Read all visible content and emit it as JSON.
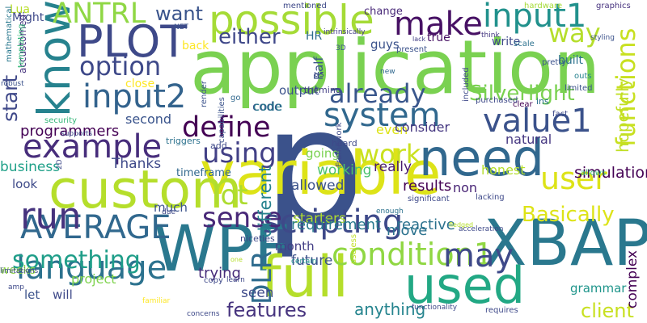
{
  "words": [
    {
      "text": "p",
      "color": "#3b528b",
      "rot": 0
    },
    {
      "text": "application",
      "color": "#7ad151",
      "rot": 0
    },
    {
      "text": "variable",
      "color": "#dde318",
      "rot": 0
    },
    {
      "text": "XBAP",
      "color": "#2a788e",
      "rot": 0
    },
    {
      "text": "need",
      "color": "#31688e",
      "rot": 0
    },
    {
      "text": "WPF",
      "color": "#2a788e",
      "rot": 0
    },
    {
      "text": "full",
      "color": "#b5de2b",
      "rot": 0
    },
    {
      "text": "custom",
      "color": "#b5de2b",
      "rot": 0
    },
    {
      "text": "used",
      "color": "#22a884",
      "rot": 0
    },
    {
      "text": "possible",
      "color": "#a5db36",
      "rot": 0
    },
    {
      "text": "PLOT",
      "color": "#3e4989",
      "rot": 0
    },
    {
      "text": "input1",
      "color": "#21918c",
      "rot": 0
    },
    {
      "text": "know",
      "color": "#26828e",
      "rot": -90
    },
    {
      "text": "system",
      "color": "#31688e",
      "rot": 0
    },
    {
      "text": "language",
      "color": "#2c728e",
      "rot": 0
    },
    {
      "text": "scripting",
      "color": "#3e4989",
      "rot": 0
    },
    {
      "text": "AVERAGE",
      "color": "#31688e",
      "rot": 0
    },
    {
      "text": "example",
      "color": "#472d7b",
      "rot": 0
    },
    {
      "text": "input2",
      "color": "#33638d",
      "rot": 0
    },
    {
      "text": "value1",
      "color": "#3b528b",
      "rot": 0
    },
    {
      "text": "condition1",
      "color": "#90d743",
      "rot": 0
    },
    {
      "text": "something",
      "color": "#1f9e89",
      "rot": 0
    },
    {
      "text": "may",
      "color": "#3e4989",
      "rot": 0
    },
    {
      "text": "functions",
      "color": "#c8e020",
      "rot": -90
    },
    {
      "text": "using",
      "color": "#424086",
      "rot": 0
    },
    {
      "text": "make",
      "color": "#471164",
      "rot": 0
    },
    {
      "text": "run",
      "color": "#46337e",
      "rot": 0
    },
    {
      "text": "sense",
      "color": "#482878",
      "rot": 0
    },
    {
      "text": "user",
      "color": "#dde318",
      "rot": 0
    },
    {
      "text": "define",
      "color": "#440154",
      "rot": 0
    },
    {
      "text": "work",
      "color": "#cae11f",
      "rot": 0
    },
    {
      "text": "ANTRL",
      "color": "#8fd744",
      "rot": 0
    },
    {
      "text": "option",
      "color": "#3e4989",
      "rot": 0
    },
    {
      "text": "already",
      "color": "#39568c",
      "rot": 0
    },
    {
      "text": "DLR",
      "color": "#2f6c8e",
      "rot": -90
    },
    {
      "text": "lot",
      "color": "#addc30",
      "rot": 0
    },
    {
      "text": "start",
      "color": "#3f4889",
      "rot": -90
    },
    {
      "text": "features",
      "color": "#46337e",
      "rot": 0
    },
    {
      "text": "Basically",
      "color": "#dde318",
      "rot": 0
    },
    {
      "text": "Silverlight",
      "color": "#7ad151",
      "rot": 0
    },
    {
      "text": "either",
      "color": "#3f4889",
      "rot": 0
    },
    {
      "text": "way",
      "color": "#b5de2b",
      "rot": 0
    },
    {
      "text": "client",
      "color": "#c8e020",
      "rot": 0
    },
    {
      "text": "want",
      "color": "#3a548c",
      "rot": 0
    },
    {
      "text": "Lua",
      "color": "#b8de29",
      "rot": 0
    },
    {
      "text": "starters",
      "color": "#addc30",
      "rot": 0
    },
    {
      "text": "working",
      "color": "#4ac16d",
      "rot": 0
    },
    {
      "text": "seen",
      "color": "#3e4a89",
      "rot": 0
    },
    {
      "text": "programmers",
      "color": "#440154",
      "rot": 0
    },
    {
      "text": "anything",
      "color": "#25848e",
      "rot": 0
    },
    {
      "text": "requirement",
      "color": "#29798e",
      "rot": 0
    },
    {
      "text": "reactive",
      "color": "#2c728e",
      "rot": 0
    },
    {
      "text": "grammar",
      "color": "#1f958b",
      "rot": 0
    },
    {
      "text": "complex",
      "color": "#440154",
      "rot": -90
    },
    {
      "text": "simulation",
      "color": "#440154",
      "rot": 0
    },
    {
      "text": "business",
      "color": "#1fa088",
      "rot": 0
    },
    {
      "text": "Thanks",
      "color": "#3e4989",
      "rot": 0
    },
    {
      "text": "output",
      "color": "#3b528b",
      "rot": 0
    },
    {
      "text": "code",
      "color": "#3b528b",
      "rot": 0
    },
    {
      "text": "even",
      "color": "#dde318",
      "rot": 0
    },
    {
      "text": "consider",
      "color": "#453781",
      "rot": 0
    },
    {
      "text": "natural",
      "color": "#453781",
      "rot": 0
    },
    {
      "text": "hopefully",
      "color": "#c0df25",
      "rot": -90
    },
    {
      "text": "trying",
      "color": "#472c7a",
      "rot": 0
    },
    {
      "text": "going",
      "color": "#7ad151",
      "rot": 0
    },
    {
      "text": "second",
      "color": "#3a548c",
      "rot": 0
    },
    {
      "text": "results",
      "color": "#440154",
      "rot": 0
    },
    {
      "text": "non",
      "color": "#482475",
      "rot": 0
    },
    {
      "text": "honest",
      "color": "#b5de2b",
      "rot": 0
    },
    {
      "text": "really",
      "color": "#481b6d",
      "rot": 0
    },
    {
      "text": "allowed",
      "color": "#3b528b",
      "rot": 0
    },
    {
      "text": "move",
      "color": "#2c728e",
      "rot": 0
    },
    {
      "text": "future",
      "color": "#3b528b",
      "rot": 0
    },
    {
      "text": "month",
      "color": "#433e85",
      "rot": 0
    },
    {
      "text": "timeframe",
      "color": "#31688e",
      "rot": 0
    },
    {
      "text": "look",
      "color": "#3e4a89",
      "rot": 0
    },
    {
      "text": "different",
      "color": "#26828e",
      "rot": -90
    },
    {
      "text": "much",
      "color": "#3b528b",
      "rot": 0
    },
    {
      "text": "weeks",
      "color": "#8fd744",
      "rot": 0
    },
    {
      "text": "let",
      "color": "#3b528b",
      "rot": 0
    },
    {
      "text": "will",
      "color": "#3e4989",
      "rot": 0
    },
    {
      "text": "project",
      "color": "#7fd34e",
      "rot": 0
    },
    {
      "text": "Ralf",
      "color": "#3b528b",
      "rot": -90
    },
    {
      "text": "code",
      "color": "#2a788e",
      "rot": 0
    },
    {
      "text": "true",
      "color": "#471164",
      "rot": 0
    },
    {
      "text": "write",
      "color": "#3e4989",
      "rot": 0
    },
    {
      "text": "HR",
      "color": "#2f6c8e",
      "rot": 0
    },
    {
      "text": "guys",
      "color": "#3b528b",
      "rot": 0
    },
    {
      "text": "built",
      "color": "#2c728e",
      "rot": 0
    },
    {
      "text": "back",
      "color": "#fde725",
      "rot": 0
    },
    {
      "text": "close",
      "color": "#fde725",
      "rot": 0
    },
    {
      "text": "change",
      "color": "#482878",
      "rot": 0
    },
    {
      "text": "mentioned",
      "color": "#3e4989",
      "rot": 0
    },
    {
      "text": "hardware",
      "color": "#a5db36",
      "rot": 0
    },
    {
      "text": "graphics",
      "color": "#46327e",
      "rot": 0
    },
    {
      "text": "Might",
      "color": "#3e4989",
      "rot": 0
    },
    {
      "text": "accustomed",
      "color": "#46337e",
      "rot": -90
    },
    {
      "text": "mathematical",
      "color": "#2a788e",
      "rot": -90
    },
    {
      "text": "templating",
      "color": "#35b779",
      "rot": -90
    },
    {
      "text": "NET",
      "color": "#3b528b",
      "rot": 0
    },
    {
      "text": "intrinsically",
      "color": "#433e85",
      "rot": 0
    },
    {
      "text": "lack",
      "color": "#433e85",
      "rot": 0
    },
    {
      "text": "think",
      "color": "#453781",
      "rot": 0
    },
    {
      "text": "styling",
      "color": "#3b528b",
      "rot": 0
    },
    {
      "text": "scale",
      "color": "#2c728e",
      "rot": 0
    },
    {
      "text": "present",
      "color": "#3b528b",
      "rot": 0
    },
    {
      "text": "3D",
      "color": "#3b528b",
      "rot": 0
    },
    {
      "text": "pretty",
      "color": "#3b528b",
      "rot": 0
    },
    {
      "text": "outs",
      "color": "#26828e",
      "rot": 0
    },
    {
      "text": "limited",
      "color": "#3b528b",
      "rot": 0
    },
    {
      "text": "ins",
      "color": "#2c728e",
      "rot": 0
    },
    {
      "text": "clear",
      "color": "#440154",
      "rot": 0
    },
    {
      "text": "purchased",
      "color": "#3e4989",
      "rot": 0
    },
    {
      "text": "included",
      "color": "#3e4989",
      "rot": -90
    },
    {
      "text": "theming",
      "color": "#433e85",
      "rot": 0
    },
    {
      "text": "us",
      "color": "#3e4989",
      "rot": 0
    },
    {
      "text": "new",
      "color": "#31688e",
      "rot": 0
    },
    {
      "text": "go",
      "color": "#31688e",
      "rot": 0
    },
    {
      "text": "render",
      "color": "#3b528b",
      "rot": -90
    },
    {
      "text": "capabilities",
      "color": "#3b528b",
      "rot": -90
    },
    {
      "text": "robust",
      "color": "#3b528b",
      "rot": 0
    },
    {
      "text": "security",
      "color": "#35b779",
      "rot": 0
    },
    {
      "text": "supports",
      "color": "#3e4989",
      "rot": 0
    },
    {
      "text": "triggers",
      "color": "#2c728e",
      "rot": 0
    },
    {
      "text": "add",
      "color": "#3e4989",
      "rot": 0
    },
    {
      "text": "heard",
      "color": "#3e4989",
      "rot": 0
    },
    {
      "text": "Framework",
      "color": "#3e4989",
      "rot": -90
    },
    {
      "text": "fact",
      "color": "#3e4989",
      "rot": 0
    },
    {
      "text": "allows",
      "color": "#35b779",
      "rot": 0
    },
    {
      "text": "2D",
      "color": "#3e4989",
      "rot": -90
    },
    {
      "text": "lacking",
      "color": "#3e4989",
      "rot": 0
    },
    {
      "text": "significant",
      "color": "#3e4989",
      "rot": 0
    },
    {
      "text": "due",
      "color": "#3e4989",
      "rot": 0
    },
    {
      "text": "enough",
      "color": "#2c728e",
      "rot": 0
    },
    {
      "text": "acceleration",
      "color": "#3e4989",
      "rot": 0
    },
    {
      "text": "niceties",
      "color": "#3e4989",
      "rot": 0
    },
    {
      "text": "useless",
      "color": "#c0df25",
      "rot": -90
    },
    {
      "text": "fledged",
      "color": "#b5de2b",
      "rot": 0
    },
    {
      "text": "one",
      "color": "#b5de2b",
      "rot": 0
    },
    {
      "text": "certain",
      "color": "#21918c",
      "rot": 0
    },
    {
      "text": "limitations",
      "color": "#3e4989",
      "rot": 0
    },
    {
      "text": "copy",
      "color": "#3e4989",
      "rot": 0
    },
    {
      "text": "learn",
      "color": "#3e4989",
      "rot": 0
    },
    {
      "text": "amp",
      "color": "#3e4989",
      "rot": 0
    },
    {
      "text": "familiar",
      "color": "#fde725",
      "rot": 0
    },
    {
      "text": "concerns",
      "color": "#3e4989",
      "rot": 0
    },
    {
      "text": "functionality",
      "color": "#3e4989",
      "rot": 0
    },
    {
      "text": "requires",
      "color": "#3e4989",
      "rot": 0
    }
  ]
}
